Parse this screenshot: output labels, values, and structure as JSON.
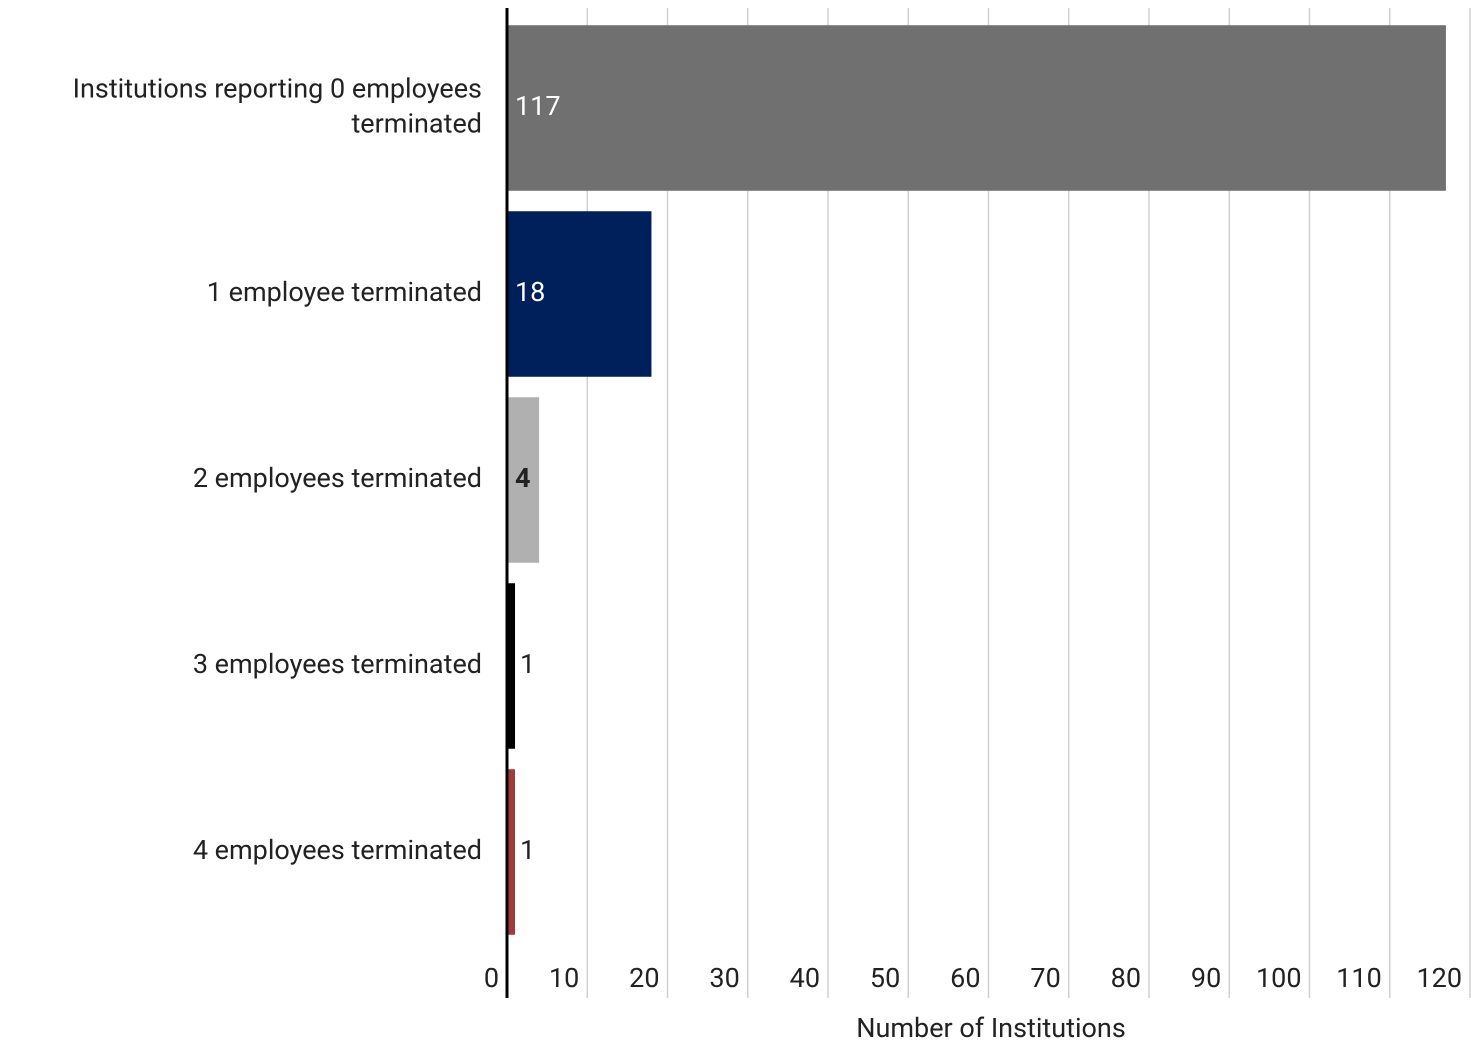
{
  "chart_data": {
    "type": "barh",
    "categories": [
      "Institutions reporting 0 employees terminated",
      "1 employee terminated",
      "2 employees terminated",
      "3 employees terminated",
      "4 employees terminated"
    ],
    "values": [
      117,
      18,
      4,
      1,
      1
    ],
    "colors": [
      "#707070",
      "#00205b",
      "#b0b0b0",
      "#000000",
      "#a33a3a"
    ],
    "xlabel": "Number of Institutions",
    "xlim": [
      0,
      120
    ],
    "xticks": [
      0,
      10,
      20,
      30,
      40,
      50,
      60,
      70,
      80,
      90,
      100,
      110,
      120
    ],
    "grid": true
  }
}
